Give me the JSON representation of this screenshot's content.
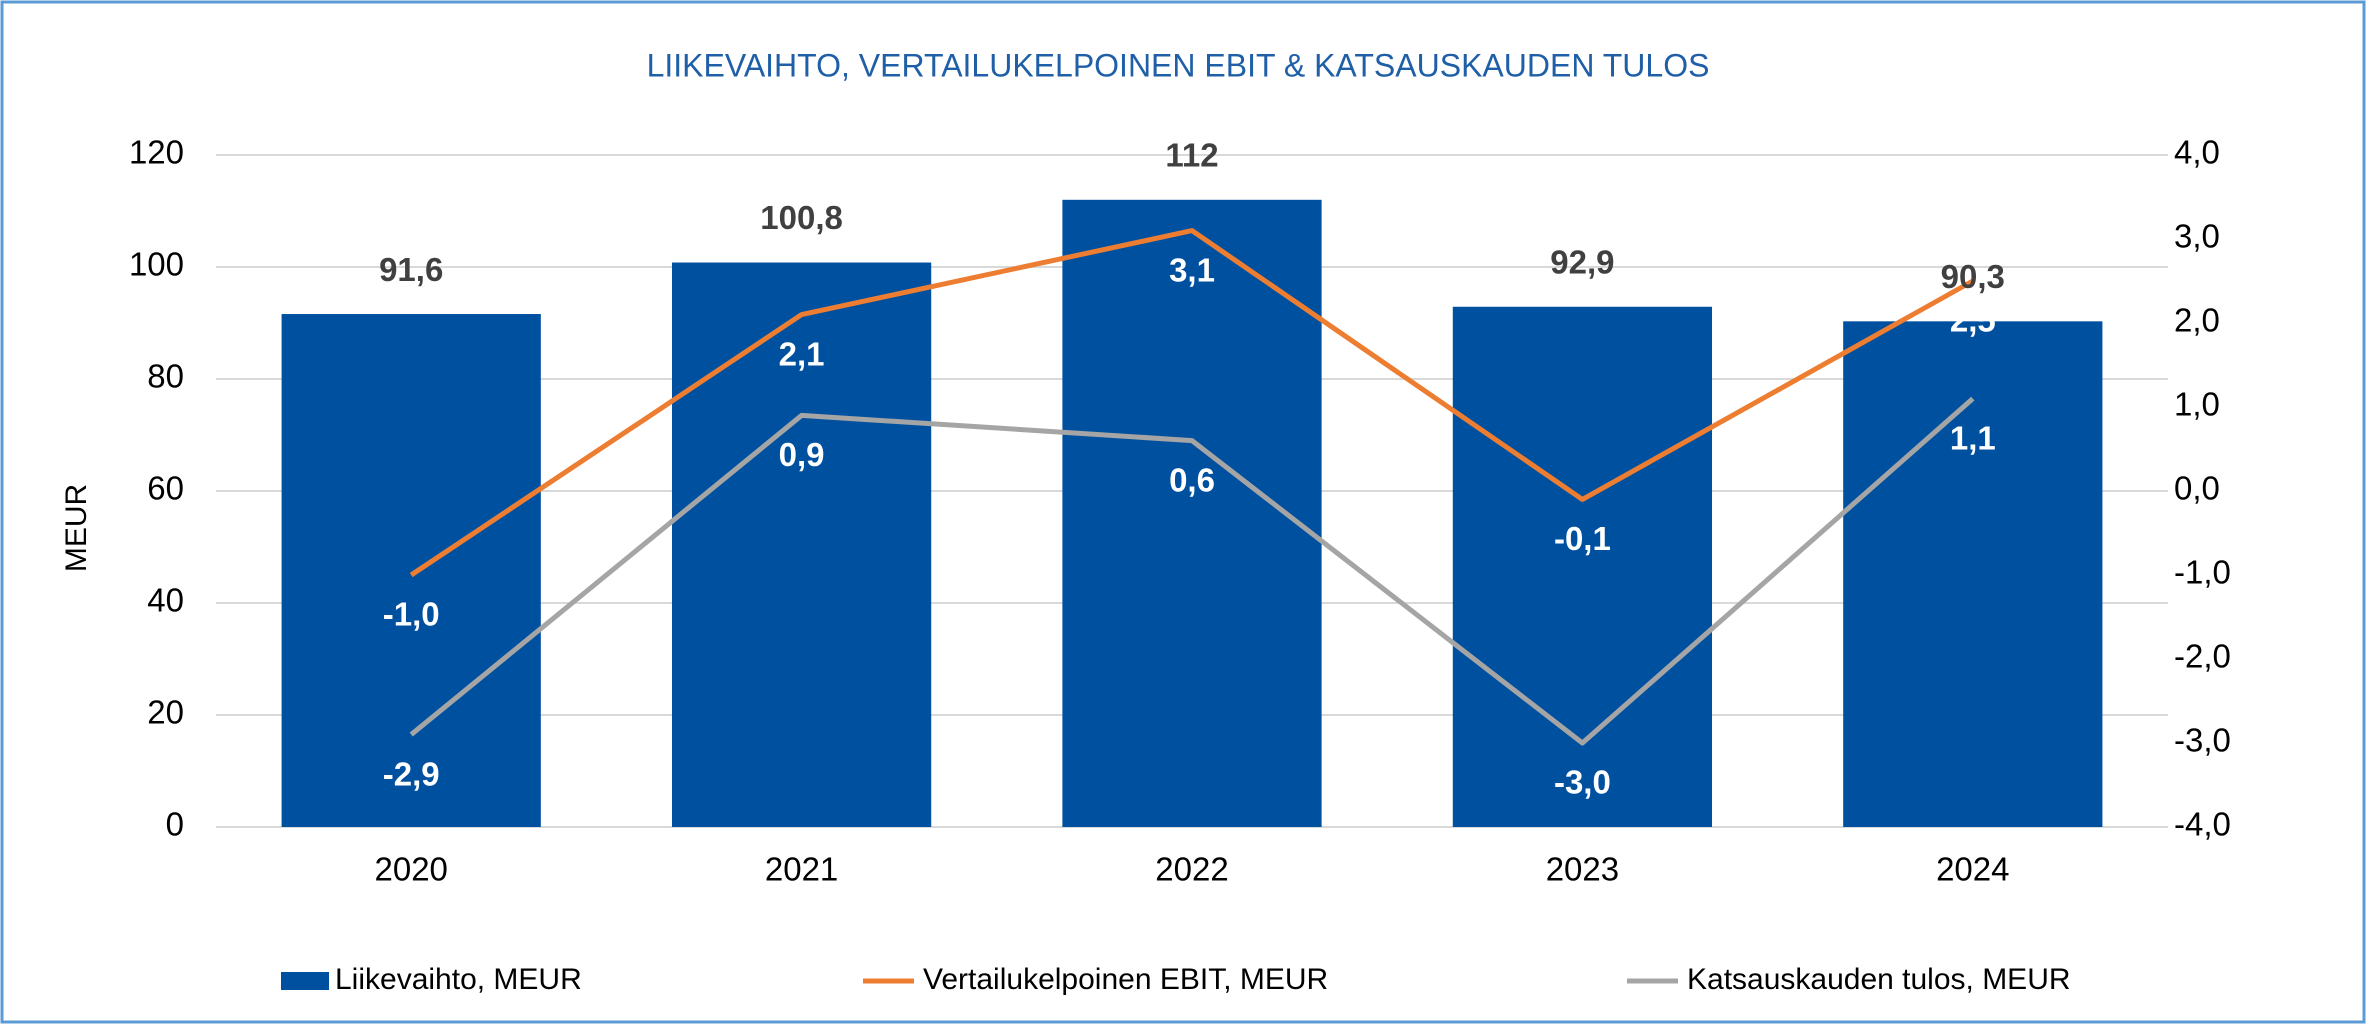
{
  "chart_data": {
    "type": "combo",
    "title": "LIIKEVAIHTO, VERTAILUKELPOINEN EBIT & KATSAUSKAUDEN TULOS",
    "ylabel": "MEUR",
    "categories": [
      "2020",
      "2021",
      "2022",
      "2023",
      "2024"
    ],
    "series": [
      {
        "name": "Liikevaihto, MEUR",
        "type": "bar",
        "axis": "y",
        "color": "#0050a0",
        "values": [
          91.6,
          100.8,
          112,
          92.9,
          90.3
        ],
        "value_labels": [
          "91,6",
          "100,8",
          "112",
          "92,9",
          "90,3"
        ]
      },
      {
        "name": "Vertailukelpoinen EBIT, MEUR",
        "type": "line",
        "axis": "y2",
        "color": "#ed7d31",
        "values": [
          -1.0,
          2.1,
          3.1,
          -0.1,
          2.5
        ],
        "value_labels": [
          "-1,0",
          "2,1",
          "3,1",
          "-0,1",
          "2,5"
        ]
      },
      {
        "name": "Katsauskauden tulos, MEUR",
        "type": "line",
        "axis": "y2",
        "color": "#a5a5a5",
        "values": [
          -2.9,
          0.9,
          0.6,
          -3.0,
          1.1
        ],
        "value_labels": [
          "-2,9",
          "0,9",
          "0,6",
          "-3,0",
          "1,1"
        ]
      }
    ],
    "ylim": [
      0,
      120
    ],
    "yticks": [
      0,
      20,
      40,
      60,
      80,
      100,
      120
    ],
    "y2lim": [
      -4,
      4
    ],
    "y2ticks": [
      {
        "value": -4,
        "label": "-4,0"
      },
      {
        "value": -3,
        "label": "-3,0"
      },
      {
        "value": -2,
        "label": "-2,0"
      },
      {
        "value": -1,
        "label": "-1,0"
      },
      {
        "value": 0,
        "label": "0,0"
      },
      {
        "value": 1,
        "label": "1,0"
      },
      {
        "value": 2,
        "label": "2,0"
      },
      {
        "value": 3,
        "label": "3,0"
      },
      {
        "value": 4,
        "label": "4,0"
      }
    ],
    "grid": true,
    "legend": "bottom"
  }
}
